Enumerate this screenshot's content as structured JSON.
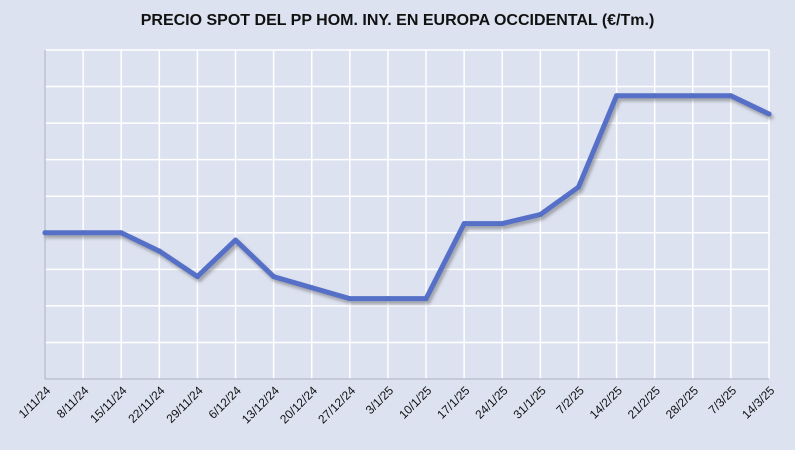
{
  "chart_data": {
    "type": "line",
    "title": "PRECIO SPOT DEL PP HOM. INY. EN EUROPA OCCIDENTAL  (€/Tm.)",
    "xlabel": "",
    "ylabel": "",
    "categories": [
      "1/11/24",
      "8/11/24",
      "15/11/24",
      "22/11/24",
      "29/11/24",
      "6/12/24",
      "13/12/24",
      "20/12/24",
      "27/12/24",
      "3/1/25",
      "10/1/25",
      "17/1/25",
      "24/1/25",
      "31/1/25",
      "7/2/25",
      "14/2/25",
      "21/2/25",
      "28/2/25",
      "7/3/25",
      "14/3/25"
    ],
    "series": [
      {
        "values": [
          3.0,
          3.0,
          3.0,
          2.5,
          1.8,
          2.8,
          1.8,
          1.5,
          1.2,
          1.2,
          1.2,
          3.25,
          3.25,
          3.5,
          4.25,
          6.75,
          6.75,
          6.75,
          6.75,
          6.25
        ],
        "color": "#5470c6"
      }
    ],
    "ylim": [
      -1,
      8
    ],
    "grid": true,
    "legend": "none",
    "y_tick_labels_shown": false
  }
}
